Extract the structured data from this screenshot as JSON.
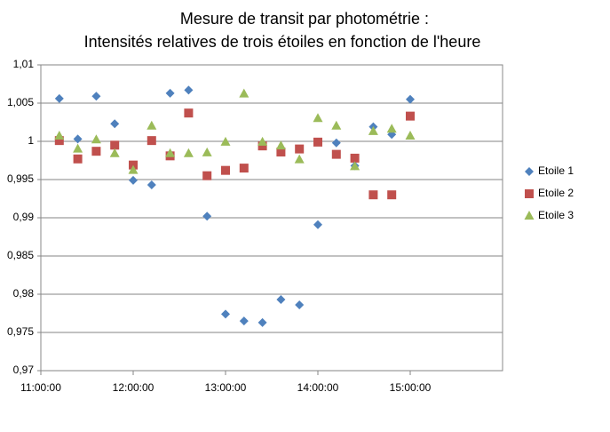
{
  "chart_data": {
    "type": "scatter",
    "title": [
      "Mesure de transit par photométrie :",
      "Intensités relatives de trois étoiles en fonction de l'heure"
    ],
    "x": [
      11.2,
      11.4,
      11.6,
      11.8,
      12.0,
      12.2,
      12.4,
      12.6,
      12.8,
      13.0,
      13.2,
      13.4,
      13.6,
      13.8,
      14.0,
      14.2,
      14.4,
      14.6,
      14.8,
      15.0
    ],
    "xlim": [
      11,
      16
    ],
    "xticks": [
      {
        "value": 11,
        "label": "11:00:00"
      },
      {
        "value": 12,
        "label": "12:00:00"
      },
      {
        "value": 13,
        "label": "13:00:00"
      },
      {
        "value": 14,
        "label": "14:00:00"
      },
      {
        "value": 15,
        "label": "15:00:00"
      }
    ],
    "ylim": [
      0.97,
      1.01
    ],
    "yticks": [
      {
        "value": 0.97,
        "label": "0,97"
      },
      {
        "value": 0.975,
        "label": "0,975"
      },
      {
        "value": 0.98,
        "label": "0,98"
      },
      {
        "value": 0.985,
        "label": "0,985"
      },
      {
        "value": 0.99,
        "label": "0,99"
      },
      {
        "value": 0.995,
        "label": "0,995"
      },
      1,
      {
        "value": 1.005,
        "label": "1,005"
      },
      {
        "value": 1.01,
        "label": "1,01"
      }
    ],
    "grid": true,
    "legend": "right",
    "series": [
      {
        "name": "Etoile 1",
        "color": "#4f81bd",
        "marker": "diamond",
        "values": [
          1.0056,
          1.0003,
          1.0059,
          1.0023,
          0.9949,
          0.9943,
          1.0063,
          1.0067,
          0.9902,
          0.9774,
          0.9765,
          0.9763,
          0.9793,
          0.9786,
          0.9891,
          0.9998,
          0.9968,
          1.0019,
          1.0009,
          1.0055
        ]
      },
      {
        "name": "Etoile 2",
        "color": "#c0504d",
        "marker": "square",
        "values": [
          1.0001,
          0.9977,
          0.9987,
          0.9995,
          0.9969,
          1.0001,
          0.9981,
          1.0037,
          0.9955,
          0.9962,
          0.9965,
          0.9994,
          0.9986,
          0.999,
          0.9999,
          0.9983,
          0.9978,
          0.993,
          0.993,
          1.0033
        ]
      },
      {
        "name": "Etoile 3",
        "color": "#9bbb59",
        "marker": "triangle",
        "values": [
          1.0007,
          0.999,
          1.0002,
          0.9984,
          0.9962,
          1.002,
          0.9984,
          0.9984,
          0.9985,
          0.9999,
          1.0062,
          0.9999,
          0.9994,
          0.9976,
          1.003,
          1.002,
          0.9967,
          1.0013,
          1.0016,
          1.0007
        ]
      }
    ]
  }
}
